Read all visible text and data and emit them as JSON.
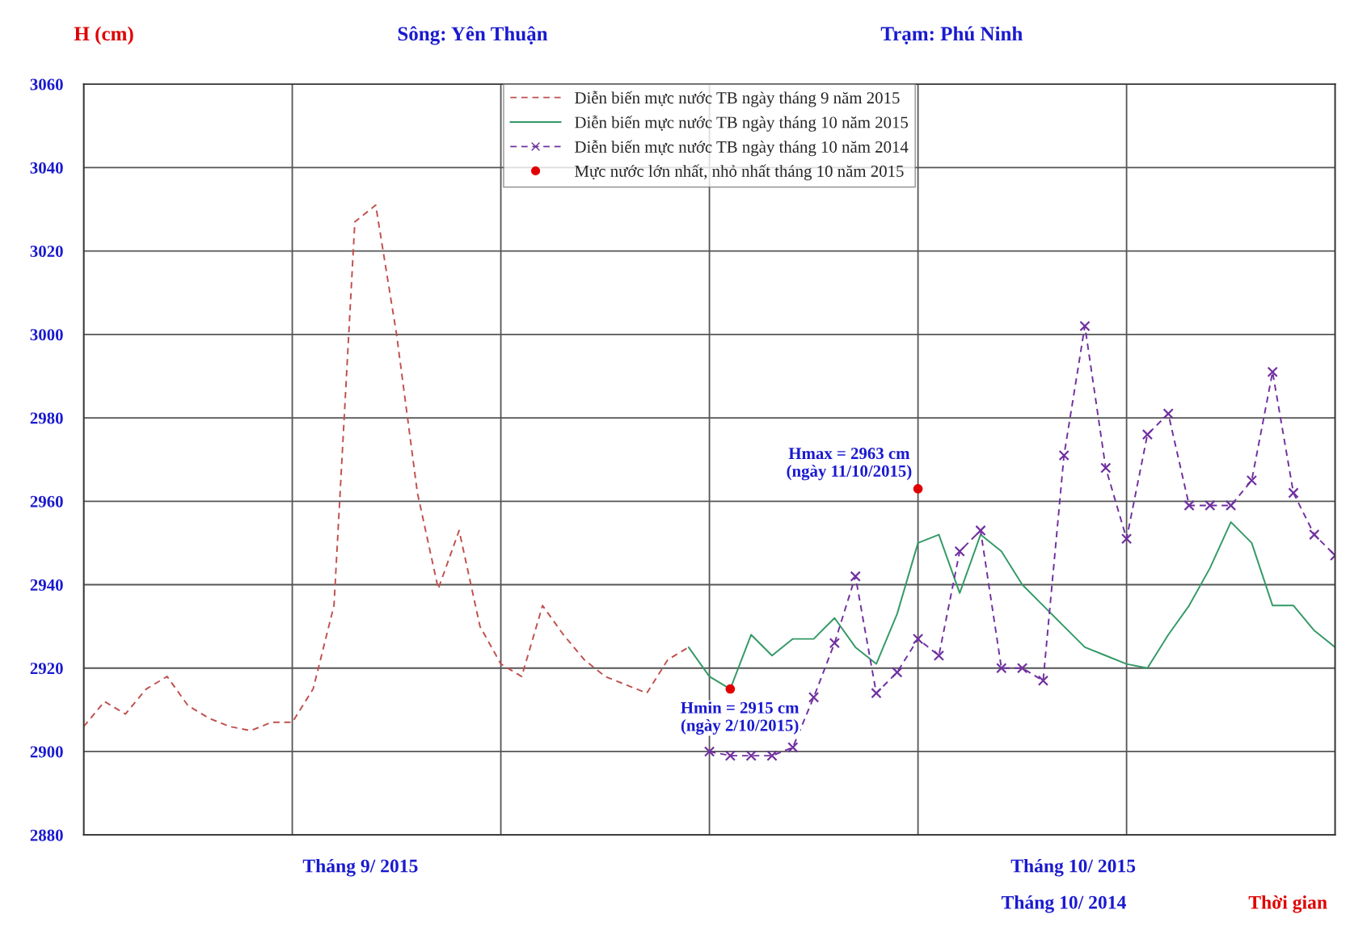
{
  "chart_data": {
    "type": "line",
    "title": "Sông: Yên Thuận",
    "subtitle": "Trạm: Phú Ninh",
    "ylabel": "H (cm)",
    "xlabel": "Thời gian",
    "annotations": [
      "Tháng 9/ 2015",
      "Tháng 10/ 2015",
      "Tháng 10/ 2014",
      "Hmax = 2963 cm\n(ngày 11/10/2015)",
      "Hmin = 2915 cm\n(ngày 2/10/2015)"
    ],
    "categories": [
      null,
      null,
      null,
      null,
      null,
      null,
      null,
      null,
      null,
      null,
      null,
      null,
      null,
      null,
      null,
      null,
      null,
      null,
      null,
      null,
      null,
      null,
      null,
      null,
      null,
      null,
      null,
      null,
      null,
      null,
      null,
      null,
      null,
      null,
      null,
      null,
      null,
      null,
      null,
      null,
      null,
      null,
      null,
      null,
      null,
      null,
      null,
      null,
      null,
      null,
      null,
      null,
      null,
      null,
      null,
      null,
      null,
      null,
      null,
      null,
      null
    ],
    "ylim": [
      2880,
      3060
    ],
    "yticks": [
      2880,
      2900,
      2920,
      2940,
      2960,
      2980,
      3000,
      3020,
      3040,
      3060
    ],
    "tick_labels": "y",
    "grid": true,
    "legend": "top",
    "series": [
      {
        "name": "Diễn biến mực nước TB ngày tháng 9 năm 2015",
        "color": "#c0504d",
        "line_style": "dashed",
        "marker": "none",
        "values": [
          2906,
          2912,
          2909,
          2915,
          2918,
          2911,
          2908,
          2906,
          2905,
          2907,
          2907,
          2915,
          2935,
          3027,
          3031,
          3000,
          2962,
          2939,
          2953,
          2930,
          2921,
          2918,
          2935,
          2928,
          2922,
          2918,
          2916,
          2914,
          2922,
          2925,
          null,
          null,
          null,
          null,
          null,
          null,
          null,
          null,
          null,
          null,
          null,
          null,
          null,
          null,
          null,
          null,
          null,
          null,
          null,
          null,
          null,
          null,
          null,
          null,
          null,
          null,
          null,
          null,
          null,
          null,
          null
        ]
      },
      {
        "name": "Diễn biến mực nước TB ngày tháng 10 năm 2015",
        "color": "#339966",
        "line_style": "solid",
        "marker": "none",
        "values": [
          null,
          null,
          null,
          null,
          null,
          null,
          null,
          null,
          null,
          null,
          null,
          null,
          null,
          null,
          null,
          null,
          null,
          null,
          null,
          null,
          null,
          null,
          null,
          null,
          null,
          null,
          null,
          null,
          null,
          2925,
          2918,
          2915,
          2928,
          2923,
          2927,
          2927,
          2932,
          2925,
          2921,
          2933,
          2950,
          2952,
          2938,
          2952,
          2948,
          2940,
          2935,
          2930,
          2925,
          2923,
          2921,
          2920,
          2928,
          2935,
          2944,
          2955,
          2950,
          2935,
          2935,
          2929,
          2925
        ]
      },
      {
        "name": "Diễn biến mực nước TB ngày tháng 10 năm 2014",
        "color": "#7030a0",
        "line_style": "dashed",
        "marker": "cross",
        "values": [
          null,
          null,
          null,
          null,
          null,
          null,
          null,
          null,
          null,
          null,
          null,
          null,
          null,
          null,
          null,
          null,
          null,
          null,
          null,
          null,
          null,
          null,
          null,
          null,
          null,
          null,
          null,
          null,
          null,
          null,
          2900,
          2899,
          2899,
          2899,
          2901,
          2913,
          2926,
          2942,
          2914,
          2919,
          2927,
          2923,
          2948,
          2953,
          2920,
          2920,
          2917,
          2971,
          3002,
          2968,
          2951,
          2976,
          2981,
          2959,
          2959,
          2959,
          2965,
          2991,
          2962,
          2952,
          2947
        ]
      },
      {
        "name": "Mực nước lớn nhất, nhỏ nhất tháng 10 năm 2015",
        "type": "scatter",
        "color": "#e00000",
        "marker": "circle",
        "values": [
          null,
          null,
          null,
          null,
          null,
          null,
          null,
          null,
          null,
          null,
          null,
          null,
          null,
          null,
          null,
          null,
          null,
          null,
          null,
          null,
          null,
          null,
          null,
          null,
          null,
          null,
          null,
          null,
          null,
          null,
          null,
          2915,
          null,
          null,
          null,
          null,
          null,
          null,
          null,
          null,
          2963,
          null,
          null,
          null,
          null,
          null,
          null,
          null,
          null,
          null,
          null,
          null,
          null,
          null,
          null,
          null,
          null,
          null,
          null,
          null,
          null
        ]
      }
    ]
  }
}
